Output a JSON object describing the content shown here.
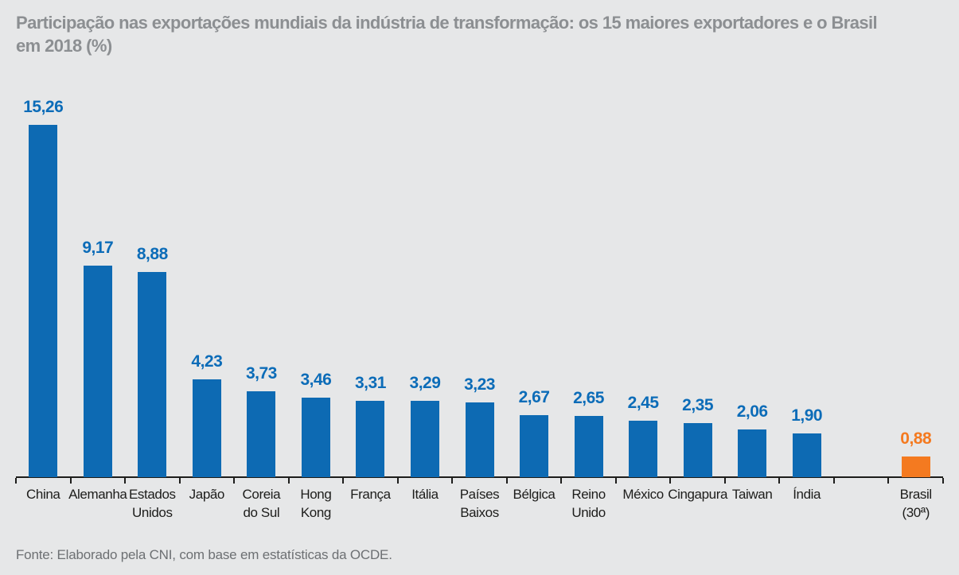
{
  "header": {
    "title": "Participação nas exportações mundiais da indústria de transformação: os 15 maiores exportadores e o Brasil\nem 2018 (%)"
  },
  "footer": {
    "source": "Fonte: Elaborado pela CNI, com base em estatísticas da OCDE."
  },
  "colors": {
    "background": "#e6e7e8",
    "bar_blue": "#0d6ab3",
    "bar_orange": "#f47a20",
    "value_label_blue": "#0c6cb8",
    "value_label_orange": "#f47a20",
    "title_gray": "#8c8f92",
    "source_gray": "#6d7073",
    "axis_black": "#1d1d1b"
  },
  "chart_data": {
    "type": "bar",
    "title": "Participação nas exportações mundiais da indústria de transformação: os 15 maiores exportadores e o Brasil em 2018 (%)",
    "categories": [
      "China",
      "Alemanha",
      "Estados\nUnidos",
      "Japão",
      "Coreia\ndo Sul",
      "Hong\nKong",
      "França",
      "Itália",
      "Países\nBaixos",
      "Bélgica",
      "Reino\nUnido",
      "México",
      "Cingapura",
      "Taiwan",
      "Índia",
      "Brasil\n(30ª)"
    ],
    "values": [
      15.26,
      9.17,
      8.88,
      4.23,
      3.73,
      3.46,
      3.31,
      3.29,
      3.23,
      2.67,
      2.65,
      2.45,
      2.35,
      2.06,
      1.9,
      0.88
    ],
    "value_labels": [
      "15,26",
      "9,17",
      "8,88",
      "4,23",
      "3,73",
      "3,46",
      "3,31",
      "3,29",
      "3,23",
      "2,67",
      "2,65",
      "2,45",
      "2,35",
      "2,06",
      "1,90",
      "0,88"
    ],
    "bar_color": "#0d6ab3",
    "highlight_index": 15,
    "highlight_color": "#f47a20",
    "gap_slot_before_last": true,
    "xlabel": "",
    "ylabel": "",
    "unit": "%",
    "ylim": [
      0,
      16
    ],
    "grid": false,
    "legend": false
  }
}
